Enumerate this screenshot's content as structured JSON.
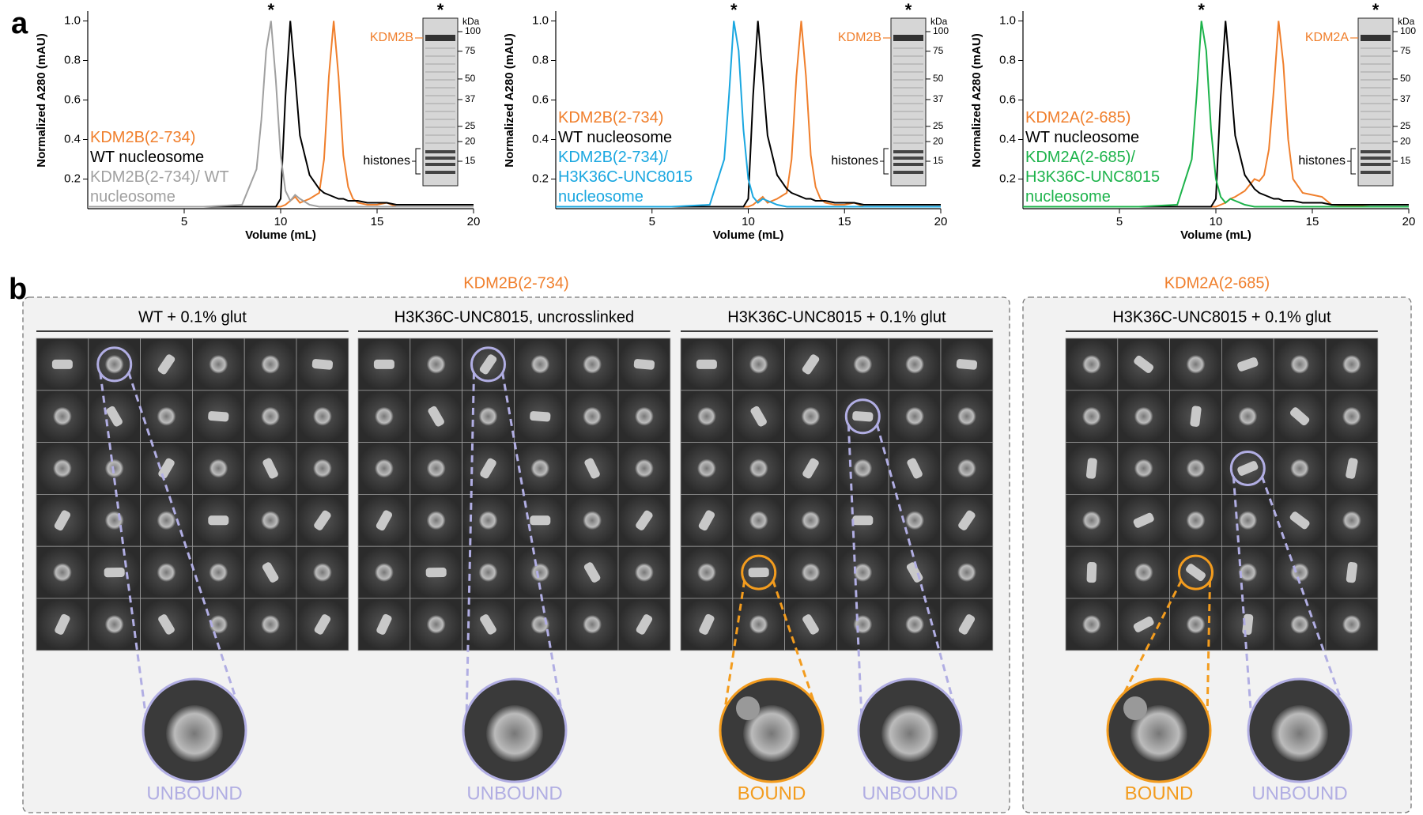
{
  "panel_a": {
    "label": "a"
  },
  "chart_data": [
    {
      "type": "line",
      "xlabel": "Volume (mL)",
      "ylabel": "Normalized A280 (mAU)",
      "x": [
        0,
        2,
        4,
        6,
        8,
        8.75,
        9,
        9.25,
        9.5,
        9.75,
        10,
        10.25,
        10.5,
        10.75,
        11,
        11.5,
        12,
        12.25,
        12.5,
        12.75,
        13,
        13.25,
        13.5,
        13.75,
        14,
        14.5,
        15,
        15.5,
        16,
        18,
        20
      ],
      "xlim": [
        0,
        20
      ],
      "xticks": [
        5,
        10,
        15,
        20
      ],
      "ylim": [
        0.05,
        1.05
      ],
      "yticks": [
        0.2,
        0.4,
        0.6,
        0.8,
        {
          "value": 1,
          "label": "1.0"
        }
      ],
      "peak_marker": "*",
      "series": [
        {
          "name": "KDM2B(2-734)",
          "color": "#f07f2c",
          "values": [
            0.06,
            0.06,
            0.06,
            0.06,
            0.06,
            0.06,
            0.06,
            0.06,
            0.06,
            0.06,
            0.06,
            0.07,
            0.09,
            0.11,
            0.08,
            0.1,
            0.13,
            0.3,
            0.72,
            1.0,
            0.72,
            0.32,
            0.16,
            0.1,
            0.08,
            0.07,
            0.07,
            0.08,
            0.06,
            0.06,
            0.06
          ]
        },
        {
          "name": "WT nucleosome",
          "color": "#000000",
          "values": [
            0.06,
            0.06,
            0.06,
            0.06,
            0.06,
            0.06,
            0.06,
            0.06,
            0.06,
            0.06,
            0.1,
            0.62,
            1.0,
            0.72,
            0.42,
            0.22,
            0.15,
            0.13,
            0.12,
            0.11,
            0.1,
            0.1,
            0.09,
            0.09,
            0.09,
            0.08,
            0.08,
            0.08,
            0.07,
            0.07,
            0.07
          ]
        },
        {
          "name": "KDM2B(2-734)/ WT nucleosome",
          "color": "#a0a0a0",
          "values": [
            0.06,
            0.06,
            0.06,
            0.06,
            0.07,
            0.25,
            0.5,
            0.85,
            1.0,
            0.7,
            0.32,
            0.14,
            0.09,
            0.12,
            0.1,
            0.07,
            0.06,
            0.06,
            0.06,
            0.06,
            0.06,
            0.06,
            0.06,
            0.06,
            0.06,
            0.06,
            0.06,
            0.06,
            0.06,
            0.06,
            0.06
          ]
        }
      ],
      "gel": {
        "protein_label": "KDM2B",
        "histone_label": "histones",
        "unit": "kDa",
        "markers": [
          100,
          75,
          50,
          37,
          25,
          20,
          15
        ]
      }
    },
    {
      "type": "line",
      "xlabel": "Volume (mL)",
      "ylabel": "Normalized A280 (mAU)",
      "x": [
        0,
        2,
        4,
        6,
        8,
        8.75,
        9,
        9.25,
        9.5,
        9.75,
        10,
        10.25,
        10.5,
        10.75,
        11,
        11.5,
        12,
        12.25,
        12.5,
        12.75,
        13,
        13.25,
        13.5,
        13.75,
        14,
        14.5,
        15,
        15.5,
        16,
        18,
        20
      ],
      "xlim": [
        0,
        20
      ],
      "xticks": [
        5,
        10,
        15,
        20
      ],
      "ylim": [
        0.05,
        1.05
      ],
      "yticks": [
        0.2,
        0.4,
        0.6,
        0.8,
        {
          "value": 1,
          "label": "1.0"
        }
      ],
      "peak_marker": "*",
      "series": [
        {
          "name": "KDM2B(2-734)",
          "color": "#f07f2c",
          "values": [
            0.06,
            0.06,
            0.06,
            0.06,
            0.06,
            0.06,
            0.06,
            0.06,
            0.06,
            0.06,
            0.06,
            0.07,
            0.09,
            0.11,
            0.08,
            0.1,
            0.13,
            0.3,
            0.72,
            1.0,
            0.72,
            0.32,
            0.16,
            0.1,
            0.08,
            0.07,
            0.07,
            0.08,
            0.06,
            0.06,
            0.06
          ]
        },
        {
          "name": "WT nucleosome",
          "color": "#000000",
          "values": [
            0.06,
            0.06,
            0.06,
            0.06,
            0.06,
            0.06,
            0.06,
            0.06,
            0.06,
            0.06,
            0.1,
            0.62,
            1.0,
            0.72,
            0.42,
            0.22,
            0.15,
            0.13,
            0.12,
            0.11,
            0.1,
            0.1,
            0.09,
            0.09,
            0.09,
            0.08,
            0.08,
            0.08,
            0.07,
            0.07,
            0.07
          ]
        },
        {
          "name": "KDM2B(2-734)/ H3K36C-UNC8015 nucleosome",
          "color": "#1aa7e0",
          "values": [
            0.06,
            0.06,
            0.06,
            0.06,
            0.07,
            0.3,
            0.62,
            1.0,
            0.85,
            0.45,
            0.2,
            0.11,
            0.08,
            0.1,
            0.09,
            0.07,
            0.06,
            0.06,
            0.06,
            0.06,
            0.06,
            0.06,
            0.06,
            0.06,
            0.06,
            0.06,
            0.06,
            0.06,
            0.06,
            0.06,
            0.06
          ]
        }
      ],
      "gel": {
        "protein_label": "KDM2B",
        "histone_label": "histones",
        "unit": "kDa",
        "markers": [
          100,
          75,
          50,
          37,
          25,
          20,
          15
        ]
      }
    },
    {
      "type": "line",
      "xlabel": "Volume (mL)",
      "ylabel": "Normalized A280 (mAU)",
      "x": [
        0,
        2,
        4,
        6,
        8,
        8.75,
        9,
        9.25,
        9.5,
        9.75,
        10,
        10.25,
        10.5,
        10.75,
        11,
        11.5,
        12,
        12.25,
        12.5,
        12.75,
        13,
        13.25,
        13.5,
        13.75,
        14,
        14.5,
        15,
        15.5,
        16,
        18,
        20
      ],
      "xlim": [
        0,
        20
      ],
      "xticks": [
        5,
        10,
        15,
        20
      ],
      "ylim": [
        0.05,
        1.05
      ],
      "yticks": [
        0.2,
        0.4,
        0.6,
        0.8,
        {
          "value": 1,
          "label": "1.0"
        }
      ],
      "peak_marker": "*",
      "series": [
        {
          "name": "KDM2A(2-685)",
          "color": "#f07f2c",
          "values": [
            0.06,
            0.06,
            0.06,
            0.06,
            0.06,
            0.06,
            0.06,
            0.06,
            0.06,
            0.06,
            0.06,
            0.07,
            0.08,
            0.1,
            0.11,
            0.14,
            0.2,
            0.19,
            0.22,
            0.35,
            0.65,
            1.0,
            0.78,
            0.4,
            0.2,
            0.13,
            0.12,
            0.11,
            0.07,
            0.06,
            0.06
          ]
        },
        {
          "name": "WT nucleosome",
          "color": "#000000",
          "values": [
            0.06,
            0.06,
            0.06,
            0.06,
            0.06,
            0.06,
            0.06,
            0.06,
            0.06,
            0.06,
            0.1,
            0.62,
            1.0,
            0.72,
            0.42,
            0.22,
            0.15,
            0.13,
            0.12,
            0.11,
            0.1,
            0.1,
            0.09,
            0.09,
            0.09,
            0.08,
            0.08,
            0.08,
            0.07,
            0.07,
            0.07
          ]
        },
        {
          "name": "KDM2A(2-685)/ H3K36C-UNC8015 nucleosome",
          "color": "#1db34b",
          "values": [
            0.06,
            0.06,
            0.06,
            0.06,
            0.07,
            0.3,
            0.62,
            1.0,
            0.85,
            0.45,
            0.2,
            0.11,
            0.08,
            0.1,
            0.09,
            0.07,
            0.06,
            0.06,
            0.06,
            0.06,
            0.06,
            0.06,
            0.06,
            0.06,
            0.06,
            0.06,
            0.06,
            0.06,
            0.06,
            0.06,
            0.06
          ]
        }
      ],
      "gel": {
        "protein_label": "KDM2A",
        "histone_label": "histones",
        "unit": "kDa",
        "markers": [
          100,
          75,
          50,
          37,
          25,
          20,
          15
        ]
      }
    }
  ],
  "panel_b": {
    "label": "b",
    "groups": [
      {
        "title": "KDM2B(2-734)",
        "conditions": [
          {
            "title": "WT + 0.1% glut",
            "zooms": [
              {
                "label": "UNBOUND"
              }
            ]
          },
          {
            "title": "H3K36C-UNC8015, uncrosslinked",
            "zooms": [
              {
                "label": "UNBOUND"
              }
            ]
          },
          {
            "title": "H3K36C-UNC8015 + 0.1% glut",
            "zooms": [
              {
                "label": "BOUND"
              },
              {
                "label": "UNBOUND"
              }
            ]
          }
        ]
      },
      {
        "title": "KDM2A(2-685)",
        "conditions": [
          {
            "title": "H3K36C-UNC8015 + 0.1% glut",
            "zooms": [
              {
                "label": "BOUND"
              },
              {
                "label": "UNBOUND"
              }
            ]
          }
        ]
      }
    ]
  }
}
